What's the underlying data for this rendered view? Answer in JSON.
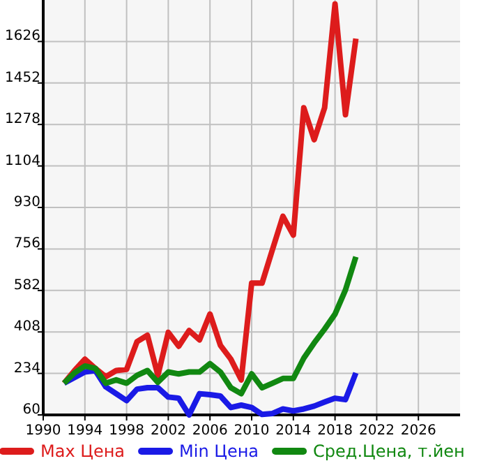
{
  "chart_data": {
    "type": "line",
    "x": [
      1992,
      1993,
      1994,
      1995,
      1996,
      1997,
      1998,
      1999,
      2000,
      2001,
      2002,
      2003,
      2004,
      2005,
      2006,
      2007,
      2008,
      2009,
      2010,
      2011,
      2012,
      2013,
      2014,
      2015,
      2016,
      2017,
      2018,
      2019,
      2020
    ],
    "series": [
      {
        "name": "Max Цена",
        "color": "#dd1c1c",
        "values": [
          193,
          246,
          294,
          255,
          220,
          246,
          251,
          367,
          394,
          226,
          406,
          348,
          414,
          375,
          483,
          352,
          294,
          207,
          613,
          613,
          754,
          893,
          814,
          1348,
          1214,
          1348,
          1783,
          1319,
          1638
        ]
      },
      {
        "name": "Min Цена",
        "color": "#1a1ae6",
        "values": [
          193,
          217,
          240,
          246,
          178,
          149,
          120,
          168,
          174,
          174,
          135,
          130,
          60,
          149,
          145,
          139,
          91,
          101,
          91,
          62,
          66,
          85,
          77,
          85,
          97,
          114,
          130,
          124,
          236
        ]
      },
      {
        "name": "Сред.Цена, т.йен",
        "color": "#118811",
        "values": [
          193,
          236,
          265,
          255,
          193,
          207,
          193,
          226,
          246,
          197,
          240,
          232,
          240,
          240,
          275,
          240,
          174,
          149,
          232,
          174,
          193,
          213,
          213,
          298,
          362,
          420,
          483,
          584,
          723
        ]
      }
    ],
    "xlim": [
      1990,
      2030
    ],
    "xticks": [
      1990,
      1994,
      1998,
      2002,
      2006,
      2010,
      2014,
      2018,
      2022,
      2026
    ],
    "ylim": [
      60,
      1800
    ],
    "yticks": [
      60,
      234,
      408,
      582,
      756,
      930,
      1104,
      1278,
      1452,
      1626
    ],
    "grid": true,
    "legend": "bottom",
    "marker": "none",
    "line_style": "solid"
  }
}
